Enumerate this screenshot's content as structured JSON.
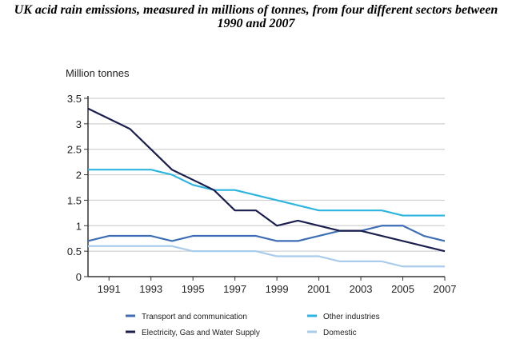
{
  "chart_data": {
    "type": "line",
    "title": "UK acid rain emissions, measured in millions of tonnes, from four different sectors between 1990 and 2007",
    "ylabel": "Million tonnes",
    "xlabel": "",
    "x": [
      1990,
      1991,
      1992,
      1993,
      1994,
      1995,
      1996,
      1997,
      1998,
      1999,
      2000,
      2001,
      2002,
      2003,
      2004,
      2005,
      2006,
      2007
    ],
    "xticks": [
      "1991",
      "1993",
      "1995",
      "1997",
      "1999",
      "2001",
      "2003",
      "2005",
      "2007"
    ],
    "yticks": [
      "0",
      "0.5",
      "1",
      "1.5",
      "2",
      "2.5",
      "3",
      "3.5"
    ],
    "ylim": [
      0,
      3.5
    ],
    "grid": "horizontal",
    "legend": "bottom",
    "series": [
      {
        "name": "Transport and communication",
        "color": "#3d6db5",
        "values": [
          0.7,
          0.8,
          0.8,
          0.8,
          0.7,
          0.8,
          0.8,
          0.8,
          0.8,
          0.7,
          0.7,
          0.8,
          0.9,
          0.9,
          1.0,
          1.0,
          0.8,
          0.7
        ]
      },
      {
        "name": "Other industries",
        "color": "#2bb5e0",
        "values": [
          2.1,
          2.1,
          2.1,
          2.1,
          2.0,
          1.8,
          1.7,
          1.7,
          1.6,
          1.5,
          1.4,
          1.3,
          1.3,
          1.3,
          1.3,
          1.2,
          1.2,
          1.2
        ]
      },
      {
        "name": "Electricity, Gas and Water Supply",
        "color": "#1a1f4e",
        "values": [
          3.3,
          3.1,
          2.9,
          2.5,
          2.1,
          1.9,
          1.7,
          1.3,
          1.3,
          1.0,
          1.1,
          1.0,
          0.9,
          0.9,
          0.8,
          0.7,
          0.6,
          0.5
        ]
      },
      {
        "name": "Domestic",
        "color": "#a9cbec",
        "values": [
          0.6,
          0.6,
          0.6,
          0.6,
          0.6,
          0.5,
          0.5,
          0.5,
          0.5,
          0.4,
          0.4,
          0.4,
          0.3,
          0.3,
          0.3,
          0.2,
          0.2,
          0.2
        ]
      }
    ]
  }
}
